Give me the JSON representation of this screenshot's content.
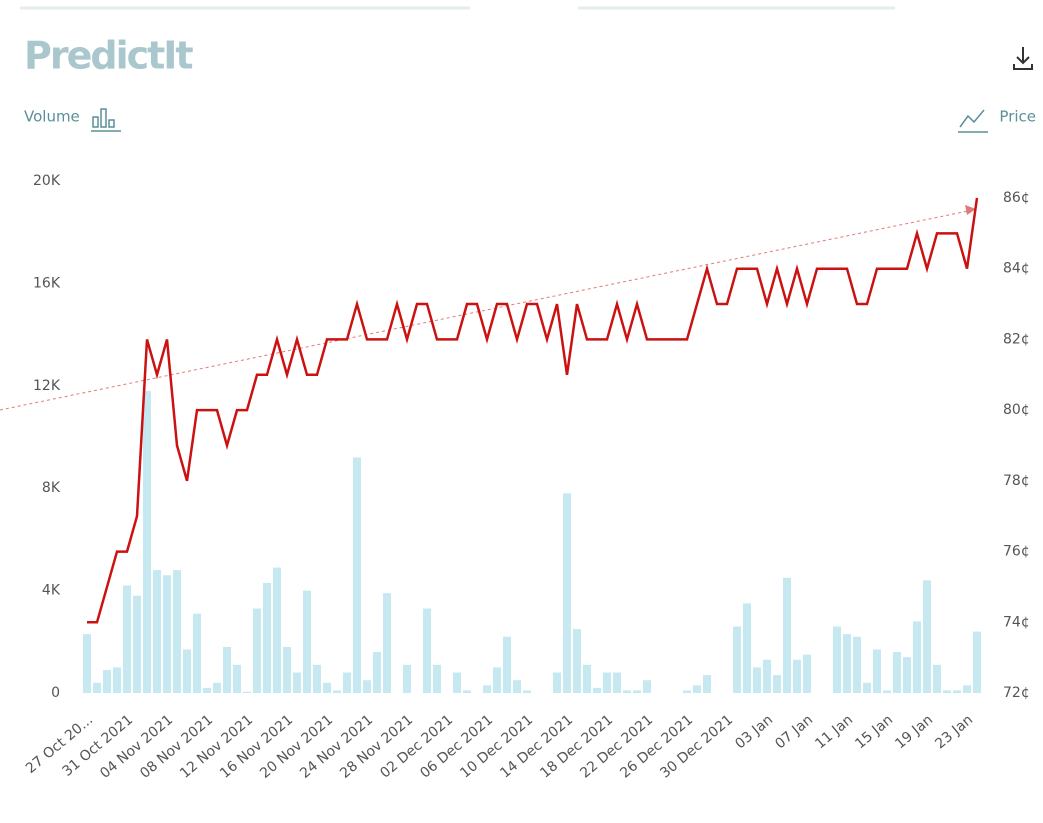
{
  "chart_data": {
    "type": "bar-line",
    "title": "PredictIt",
    "ylabel": "Volume",
    "y2label": "Price",
    "categories": [
      "27 Oct 20...",
      null,
      null,
      null,
      "31 Oct 2021",
      null,
      null,
      null,
      "04 Nov 2021",
      null,
      null,
      null,
      "08 Nov 2021",
      null,
      null,
      null,
      "12 Nov 2021",
      null,
      null,
      null,
      "16 Nov 2021",
      null,
      null,
      null,
      "20 Nov 2021",
      null,
      null,
      null,
      "24 Nov 2021",
      null,
      null,
      null,
      "28 Nov 2021",
      null,
      null,
      null,
      "02 Dec 2021",
      null,
      null,
      null,
      "06 Dec 2021",
      null,
      null,
      null,
      "10 Dec 2021",
      null,
      null,
      null,
      "14 Dec 2021",
      null,
      null,
      null,
      "18 Dec 2021",
      null,
      null,
      null,
      "22 Dec 2021",
      null,
      null,
      null,
      "26 Dec 2021",
      null,
      null,
      null,
      "30 Dec 2021",
      null,
      null,
      null,
      "03 Jan",
      null,
      null,
      null,
      "07 Jan",
      null,
      null,
      null,
      "11 Jan",
      null,
      null,
      null,
      "15 Jan",
      null,
      null,
      null,
      "19 Jan",
      null,
      null,
      null,
      "23 Jan",
      null
    ],
    "series": [
      {
        "name": "Volume",
        "color": "#c6e9f1",
        "values": [
          2300,
          400,
          900,
          1000,
          4200,
          3800,
          11800,
          4800,
          4600,
          4800,
          1700,
          3100,
          200,
          400,
          1800,
          1100,
          50,
          3300,
          4300,
          4900,
          1800,
          800,
          4000,
          1100,
          400,
          100,
          800,
          9200,
          500,
          1600,
          3900,
          0,
          1100,
          0,
          3300,
          1100,
          0,
          800,
          100,
          0,
          300,
          1000,
          2200,
          500,
          100,
          0,
          0,
          800,
          7800,
          2500,
          1100,
          200,
          800,
          800,
          100,
          100,
          500,
          0,
          0,
          0,
          100,
          300,
          700,
          0,
          0,
          2600,
          3500,
          1000,
          1300,
          700,
          4500,
          1300,
          1500,
          0,
          0,
          2600,
          2300,
          2200,
          400,
          1700,
          100,
          1600,
          1400,
          2800,
          4400,
          1100,
          100,
          100,
          300,
          2400
        ]
      },
      {
        "name": "Price",
        "color": "#cc1111",
        "axis": "y2",
        "values": [
          74,
          74,
          75,
          76,
          76,
          77,
          82,
          81,
          82,
          79,
          78,
          80,
          80,
          80,
          79,
          80,
          80,
          81,
          81,
          82,
          81,
          82,
          81,
          81,
          82,
          82,
          82,
          83,
          82,
          82,
          82,
          83,
          82,
          83,
          83,
          82,
          82,
          82,
          83,
          83,
          82,
          83,
          83,
          82,
          83,
          83,
          82,
          83,
          81,
          83,
          82,
          82,
          82,
          83,
          82,
          83,
          82,
          82,
          82,
          82,
          82,
          83,
          84,
          83,
          83,
          84,
          84,
          84,
          83,
          84,
          83,
          84,
          83,
          84,
          84,
          84,
          84,
          83,
          83,
          84,
          84,
          84,
          84,
          85,
          84,
          85,
          85,
          85,
          84,
          86
        ]
      }
    ],
    "ylim": [
      0,
      20000
    ],
    "yticks": [
      0,
      {
        "value": 4000,
        "label": "4K"
      },
      {
        "value": 8000,
        "label": "8K"
      },
      {
        "value": 12000,
        "label": "12K"
      },
      {
        "value": 16000,
        "label": "16K"
      },
      {
        "value": 20000,
        "label": "20K"
      }
    ],
    "y2lim": [
      72,
      86.48
    ],
    "y2ticks": [
      {
        "value": 72,
        "label": "72¢"
      },
      {
        "value": 74,
        "label": "74¢"
      },
      {
        "value": 76,
        "label": "76¢"
      },
      {
        "value": 78,
        "label": "78¢"
      },
      {
        "value": 80,
        "label": "80¢"
      },
      {
        "value": 82,
        "label": "82¢"
      },
      {
        "value": 84,
        "label": "84¢"
      },
      {
        "value": 86,
        "label": "86¢"
      }
    ],
    "grid": false
  }
}
